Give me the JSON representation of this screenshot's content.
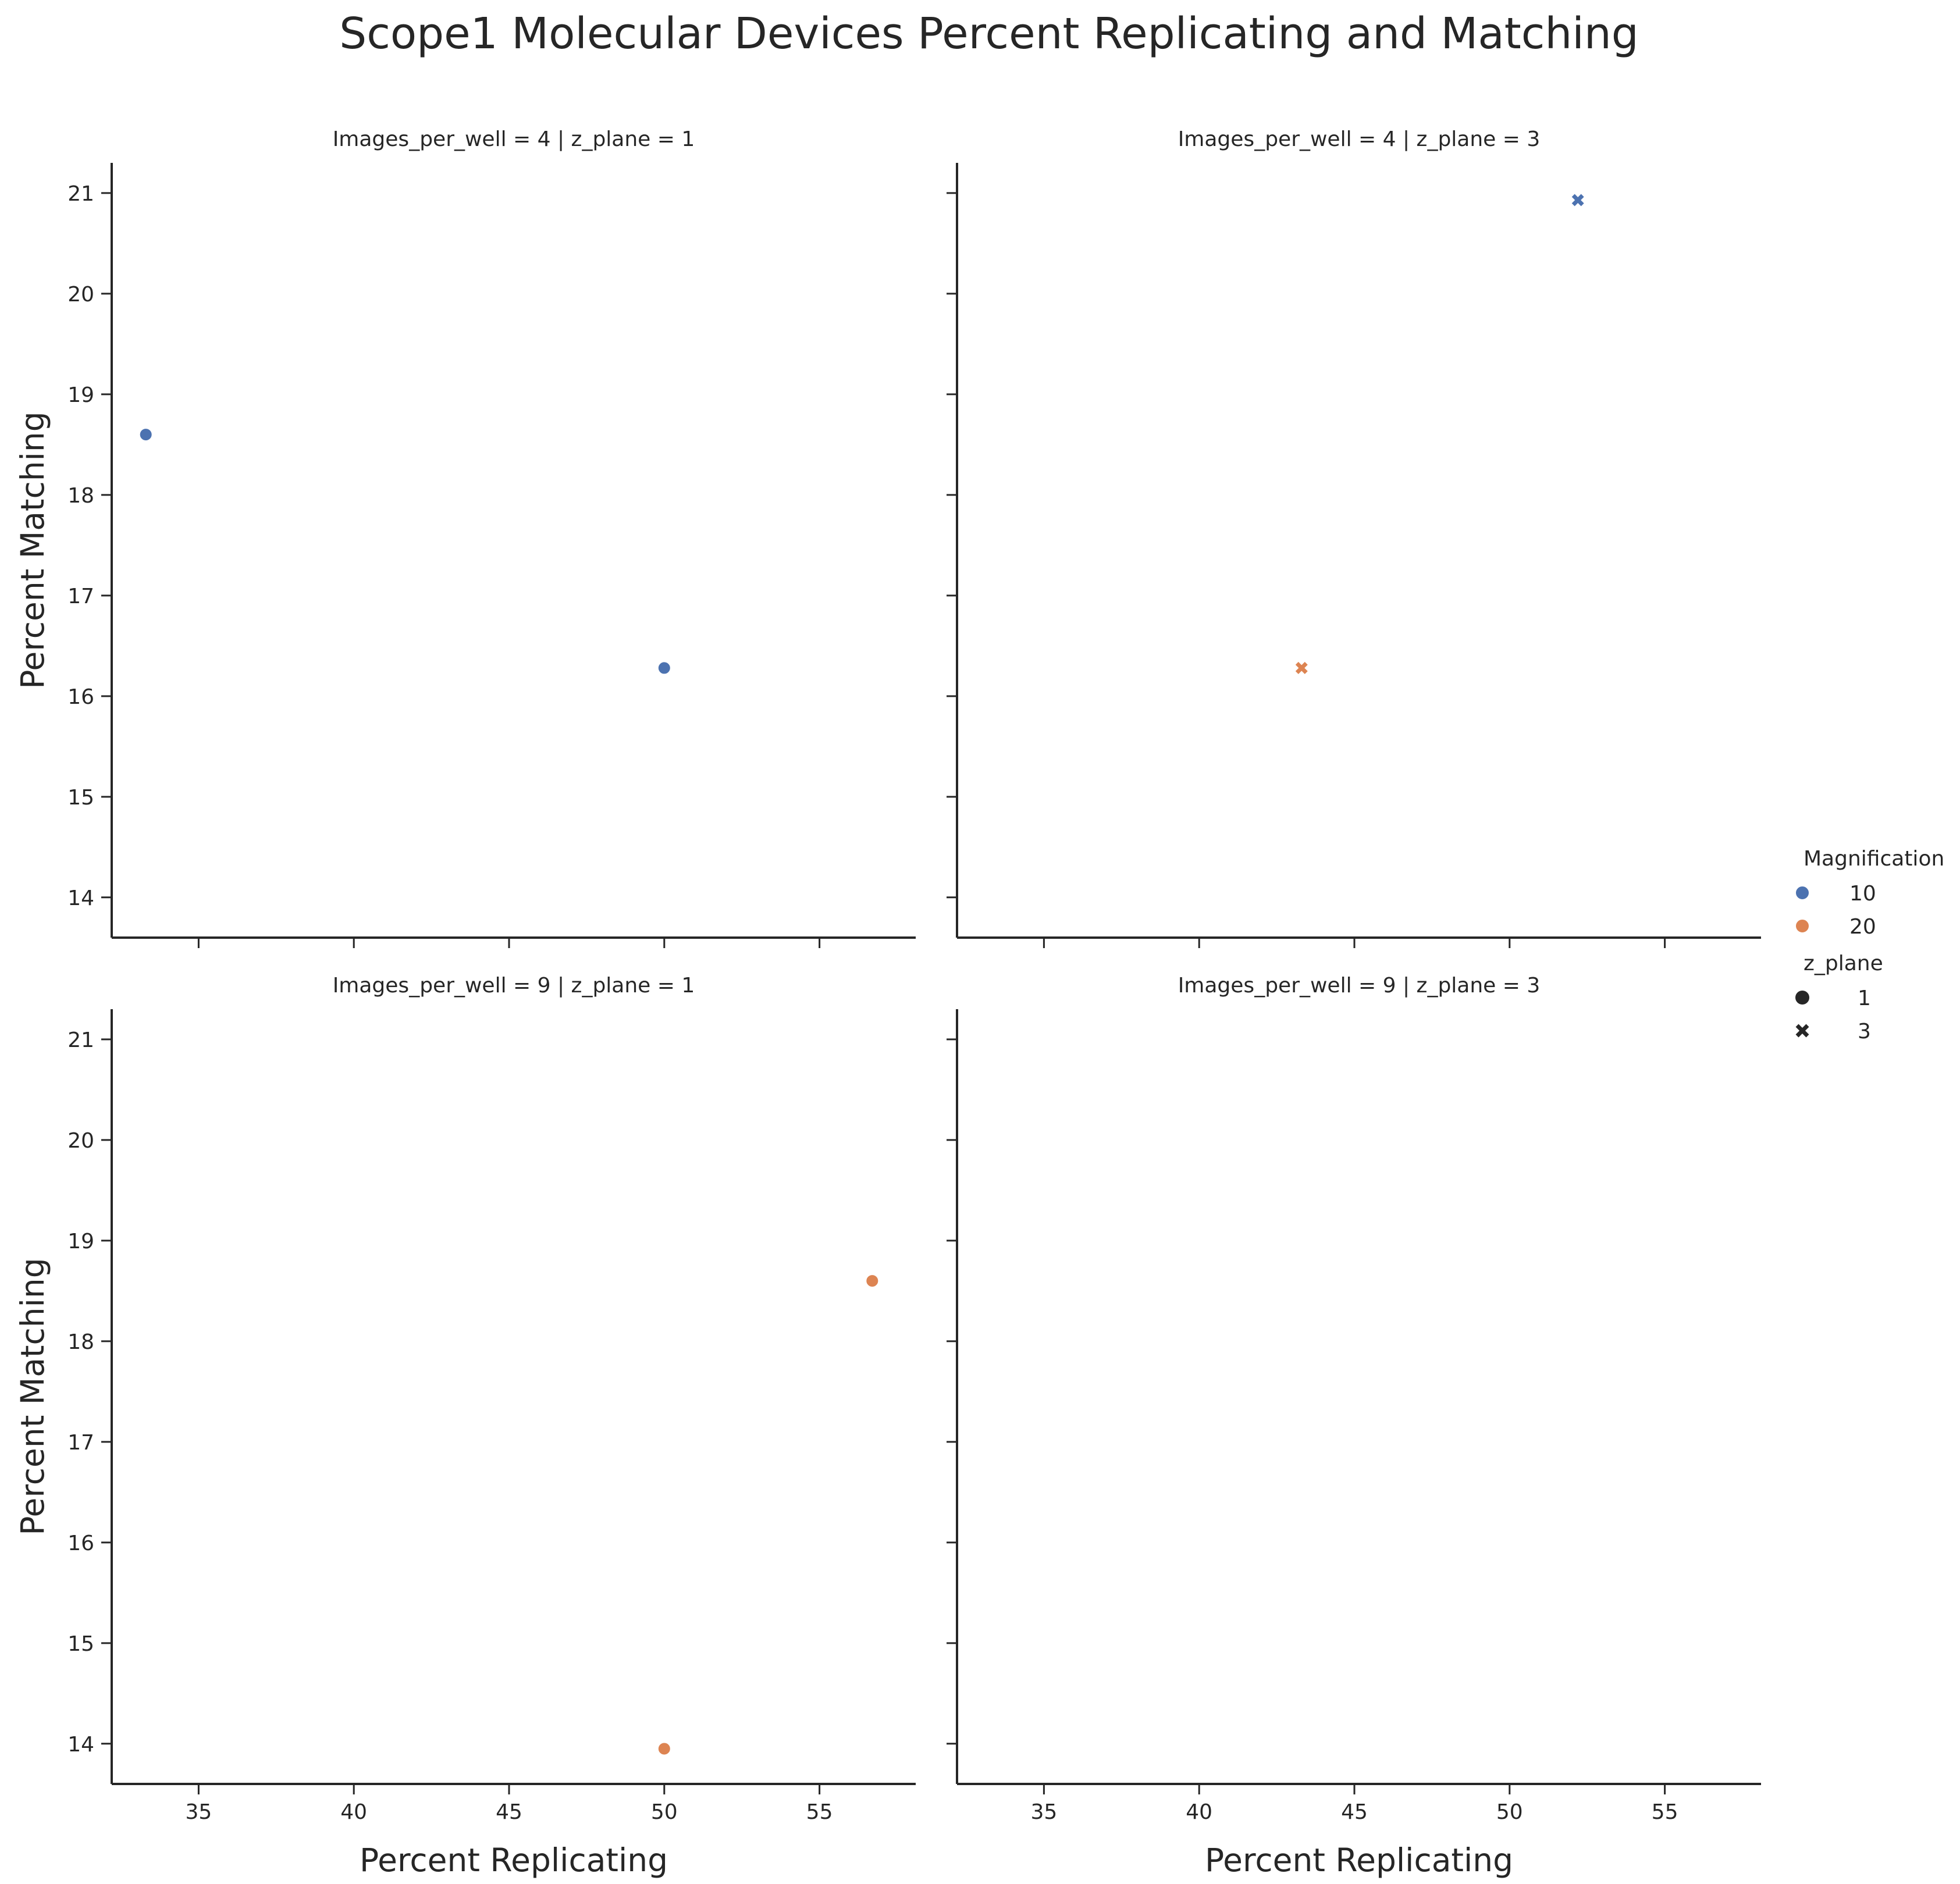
{
  "chart_data": {
    "type": "scatter",
    "title": "Scope1 Molecular Devices Percent Replicating and Matching",
    "xlabel": "Percent Replicating",
    "ylabel": "Percent Matching",
    "xlim": [
      32.2,
      58.1
    ],
    "ylim": [
      13.6,
      21.3
    ],
    "xticks": [
      35,
      40,
      45,
      50,
      55
    ],
    "yticks": [
      14,
      15,
      16,
      17,
      18,
      19,
      20,
      21
    ],
    "colors": {
      "10": "#4c72b0",
      "20": "#dd8452"
    },
    "legend": {
      "placement": "right",
      "hue_title": "Magnification",
      "hue_items": [
        {
          "label": "10",
          "color": "#4c72b0"
        },
        {
          "label": "20",
          "color": "#dd8452"
        }
      ],
      "style_title": "z_plane",
      "style_items": [
        {
          "label": "1",
          "marker": "circle"
        },
        {
          "label": "3",
          "marker": "x"
        }
      ]
    },
    "panels": [
      {
        "title": "Images_per_well = 4 | z_plane = 1",
        "marker": "circle",
        "points": [
          {
            "x": 33.3,
            "y": 18.6,
            "magnification": "10"
          },
          {
            "x": 50.0,
            "y": 16.28,
            "magnification": "10"
          }
        ]
      },
      {
        "title": "Images_per_well = 4 | z_plane = 3",
        "marker": "x",
        "points": [
          {
            "x": 52.2,
            "y": 20.93,
            "magnification": "10"
          },
          {
            "x": 43.3,
            "y": 16.28,
            "magnification": "20"
          }
        ]
      },
      {
        "title": "Images_per_well = 9 | z_plane = 1",
        "marker": "circle",
        "points": [
          {
            "x": 56.7,
            "y": 18.6,
            "magnification": "20"
          },
          {
            "x": 50.0,
            "y": 13.95,
            "magnification": "20"
          }
        ]
      },
      {
        "title": "Images_per_well = 9 | z_plane = 3",
        "marker": "x",
        "points": []
      }
    ]
  }
}
